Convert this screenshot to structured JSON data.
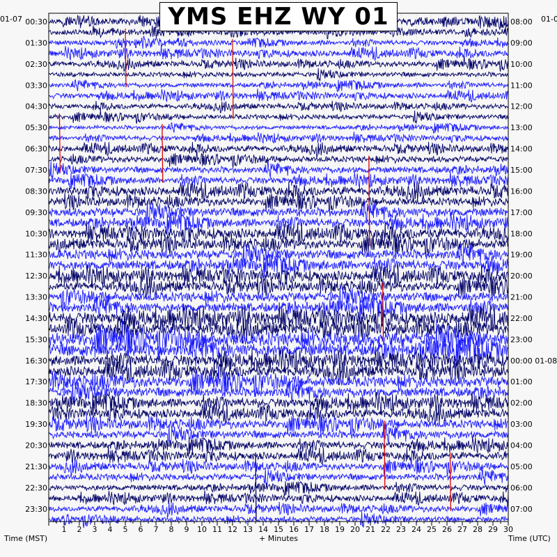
{
  "header": {
    "title": "YMS EHZ WY 01",
    "date_left": "01-07",
    "date_right": "01-0"
  },
  "axis": {
    "left_label": "Time (MST)",
    "center_label": "+ Minutes",
    "right_label": "Time (UTC)"
  },
  "colors": {
    "trace_dark": "#000066",
    "trace_blue": "#1a1aff",
    "event": "#dd0000",
    "grid": "#aaaaaa",
    "frame": "#000000"
  },
  "chart_data": {
    "type": "line",
    "description_type": "helicorder",
    "title": "YMS EHZ WY 01",
    "xlabel": "+ Minutes",
    "ylabel_left": "Time (MST)",
    "ylabel_right": "Time (UTC)",
    "xlim": [
      0,
      30
    ],
    "x_ticks": [
      1,
      2,
      3,
      4,
      5,
      6,
      7,
      8,
      9,
      10,
      11,
      12,
      13,
      14,
      15,
      16,
      17,
      18,
      19,
      20,
      21,
      22,
      23,
      24,
      25,
      26,
      27,
      28,
      29,
      30
    ],
    "trace_count": 48,
    "trace_minutes": 30,
    "left_tick_labels": [
      "00:30",
      "01:30",
      "02:30",
      "03:30",
      "04:30",
      "05:30",
      "06:30",
      "07:30",
      "08:30",
      "09:30",
      "10:30",
      "11:30",
      "12:30",
      "13:30",
      "14:30",
      "15:30",
      "16:30",
      "17:30",
      "18:30",
      "19:30",
      "20:30",
      "21:30",
      "22:30",
      "23:30"
    ],
    "right_tick_labels": [
      "08:00",
      "09:00",
      "10:00",
      "11:00",
      "12:00",
      "13:00",
      "14:00",
      "15:00",
      "16:00",
      "17:00",
      "18:00",
      "19:00",
      "20:00",
      "21:00",
      "22:00",
      "23:00",
      "00:00 01-08",
      "01:00",
      "02:00",
      "03:00",
      "04:00",
      "05:00",
      "06:00",
      "07:00"
    ],
    "trace_amplitude": [
      0.5,
      0.45,
      0.4,
      0.5,
      0.45,
      0.4,
      0.4,
      0.45,
      0.4,
      0.4,
      0.35,
      0.4,
      0.5,
      0.5,
      0.55,
      0.55,
      0.7,
      0.65,
      0.75,
      0.7,
      0.8,
      0.75,
      0.8,
      0.8,
      0.8,
      0.75,
      0.8,
      0.8,
      1.0,
      0.9,
      1.2,
      1.1,
      0.9,
      0.85,
      0.9,
      0.8,
      0.75,
      0.7,
      0.7,
      0.65,
      0.6,
      0.6,
      0.55,
      0.55,
      0.5,
      0.5,
      0.5,
      0.5
    ],
    "events": [
      {
        "minute": 5.0,
        "from_row": 1,
        "to_row": 6,
        "color": "event"
      },
      {
        "minute": 12.0,
        "from_row": 2,
        "to_row": 9,
        "color": "event"
      },
      {
        "minute": 0.7,
        "from_row": 9,
        "to_row": 14,
        "color": "event"
      },
      {
        "minute": 7.4,
        "from_row": 10,
        "to_row": 15,
        "color": "event"
      },
      {
        "minute": 20.9,
        "from_row": 13,
        "to_row": 21,
        "color": "event"
      },
      {
        "minute": 21.8,
        "from_row": 25,
        "to_row": 30,
        "color": "event"
      },
      {
        "minute": 21.9,
        "from_row": 38,
        "to_row": 44,
        "color": "event"
      },
      {
        "minute": 26.2,
        "from_row": 41,
        "to_row": 46,
        "color": "event"
      },
      {
        "minute": 13.5,
        "from_row": 41,
        "to_row": 47,
        "color": "trace_dark"
      }
    ]
  }
}
